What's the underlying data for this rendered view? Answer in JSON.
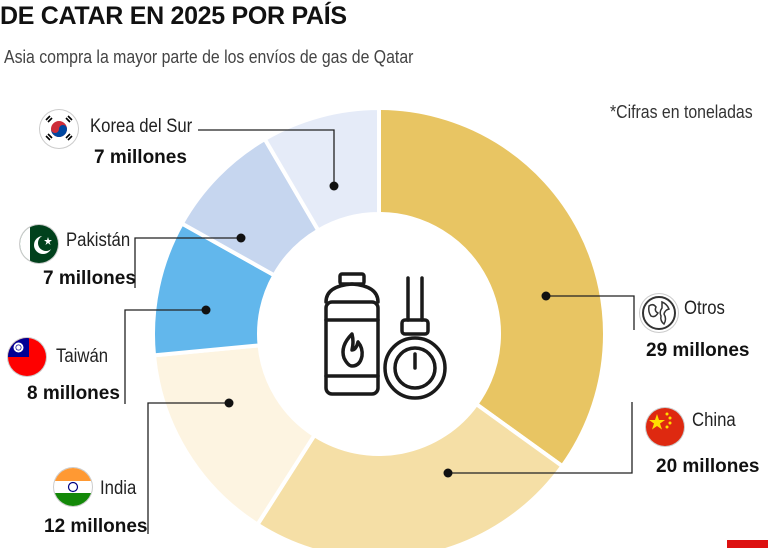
{
  "header": {
    "title": "DE CATAR EN 2025 POR PAÍS",
    "subtitle": "Asia compra la mayor parte de los envíos de gas de Qatar",
    "note": "*Cifras en toneladas"
  },
  "colors": {
    "otros": "#e8c563",
    "china": "#f5dfa6",
    "india": "#fdf4e1",
    "taiwan": "#62b7ec",
    "pakistan": "#c6d6ef",
    "korea": "#e5ebf8"
  },
  "icons": [
    "gas-cylinder-icon",
    "gas-gauge-icon",
    "globe-icon"
  ],
  "chart_data": {
    "type": "pie",
    "donut": true,
    "slices": [
      {
        "label": "Otros",
        "value": 29,
        "display": "29 millones",
        "color": "#e8c563"
      },
      {
        "label": "China",
        "value": 20,
        "display": "20 millones",
        "color": "#f5dfa6"
      },
      {
        "label": "India",
        "value": 12,
        "display": "12 millones",
        "color": "#fdf4e1"
      },
      {
        "label": "Taiwán",
        "value": 8,
        "display": "8 millones",
        "color": "#62b7ec"
      },
      {
        "label": "Pakistán",
        "value": 7,
        "display": "7 millones",
        "color": "#c6d6ef"
      },
      {
        "label": "Korea del Sur",
        "value": 7,
        "display": "7 millones",
        "color": "#e5ebf8"
      }
    ]
  }
}
